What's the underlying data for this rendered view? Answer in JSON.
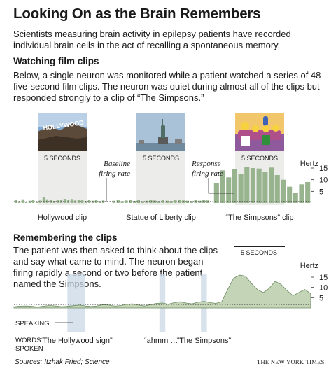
{
  "title": "Looking On as the Brain Remembers",
  "intro": "Scientists measuring brain activity in epilepsy patients have recorded individual brain cells in the act of recalling a spontaneous memory.",
  "section1": {
    "heading": "Watching film clips",
    "body": "Below, a single neuron was monitored while a patient watched a series of 48 five-second film clips. The neuron was quiet during almost all of the clips but responded strongly to a clip of “The Simpsons.”"
  },
  "section2": {
    "heading": "Remembering the clips",
    "body": "The patient was then asked to think about the clips and say what came to mind. The neuron began firing rapidly a second or two before the patient named the Simpsons."
  },
  "source": "Sources: Itzhak Fried; Science",
  "credit": "THE NEW YORK TIMES",
  "colors": {
    "bar": "#98b48e",
    "bar_dark": "#6f8c66",
    "trace": "#c4d4b6",
    "trace_stroke": "#6a8a60",
    "clip_bg": "#ececea",
    "speaking": "#c9d8e6"
  },
  "icons": [
    "hollywood-sign-photo",
    "statue-of-liberty-photo",
    "simpsons-photo"
  ],
  "chart_data": [
    {
      "type": "bar",
      "title": "Watching film clips",
      "ylabel": "Hertz",
      "yticks": [
        5,
        10,
        15
      ],
      "ylim": [
        0,
        18
      ],
      "annotations": {
        "clip_duration": "5 SECONDS",
        "baseline": "Baseline firing rate",
        "response": "Response firing rate"
      },
      "clips": [
        "Hollywood clip",
        "Statue of Liberty clip",
        "“The Simpsons” clip"
      ],
      "series": [
        {
          "values": [
            1.2,
            0.8,
            1.6,
            0.6,
            1.0,
            1.4,
            0.7,
            1.1,
            2.4,
            1.6,
            1.3,
            0.9,
            1.5,
            1.2,
            1.8,
            1.4,
            1.7,
            1.1,
            1.3,
            1.5,
            0.9,
            1.2,
            1.0,
            1.4,
            0.8,
            1.1
          ]
        },
        {
          "values": [
            1.0,
            1.2,
            0.8,
            1.1,
            1.3,
            0.9,
            1.2,
            0.7,
            1.0,
            1.4,
            1.1,
            0.8,
            1.2,
            1.0,
            0.9,
            1.3,
            1.2,
            1.1,
            1.0,
            0.8,
            1.2,
            1.0,
            1.3,
            1.1
          ]
        },
        {
          "values": [
            8.5,
            14.0,
            11.0,
            14.5,
            12.5,
            15.5,
            15.0,
            14.8,
            13.5,
            15.2,
            12.0,
            10.0,
            7.0,
            4.5,
            8.0,
            9.0
          ]
        }
      ]
    },
    {
      "type": "area",
      "title": "Remembering the clips",
      "ylabel": "Hertz",
      "yticks": [
        5,
        10,
        15
      ],
      "ylim": [
        0,
        18
      ],
      "annotations": {
        "duration": "5 SECONDS"
      },
      "x": [
        0,
        2,
        4,
        6,
        8,
        10,
        12,
        14,
        16,
        18,
        20,
        22,
        24,
        26,
        28,
        30,
        32,
        34,
        36,
        38,
        40,
        42,
        44,
        46,
        48,
        50,
        52,
        54,
        56,
        58,
        60,
        62,
        64,
        66,
        68,
        70,
        72,
        74,
        76,
        78,
        80,
        82,
        84,
        86,
        88,
        90,
        92,
        94,
        96,
        98,
        100
      ],
      "values": [
        0.6,
        0.9,
        1.0,
        0.8,
        0.5,
        0.9,
        1.2,
        1.0,
        0.6,
        0.8,
        1.1,
        1.4,
        1.0,
        0.7,
        1.0,
        1.6,
        1.4,
        0.9,
        1.2,
        1.8,
        2.0,
        1.4,
        1.0,
        1.6,
        2.2,
        2.4,
        1.8,
        2.6,
        3.0,
        2.4,
        2.0,
        2.8,
        3.2,
        2.6,
        2.2,
        3.0,
        9.0,
        14.5,
        16.0,
        15.5,
        12.0,
        9.0,
        7.5,
        9.5,
        13.0,
        11.5,
        8.5,
        6.0,
        7.5,
        9.0,
        7.0
      ],
      "speaking": [
        {
          "start": 18,
          "end": 24,
          "words": "“The Hollywood sign”"
        },
        {
          "start": 49,
          "end": 51,
          "words": "“ahmm …”"
        },
        {
          "start": 63,
          "end": 65,
          "words": "“The Simpsons”"
        }
      ],
      "rows": [
        "SPEAKING",
        "WORDS SPOKEN"
      ]
    }
  ]
}
